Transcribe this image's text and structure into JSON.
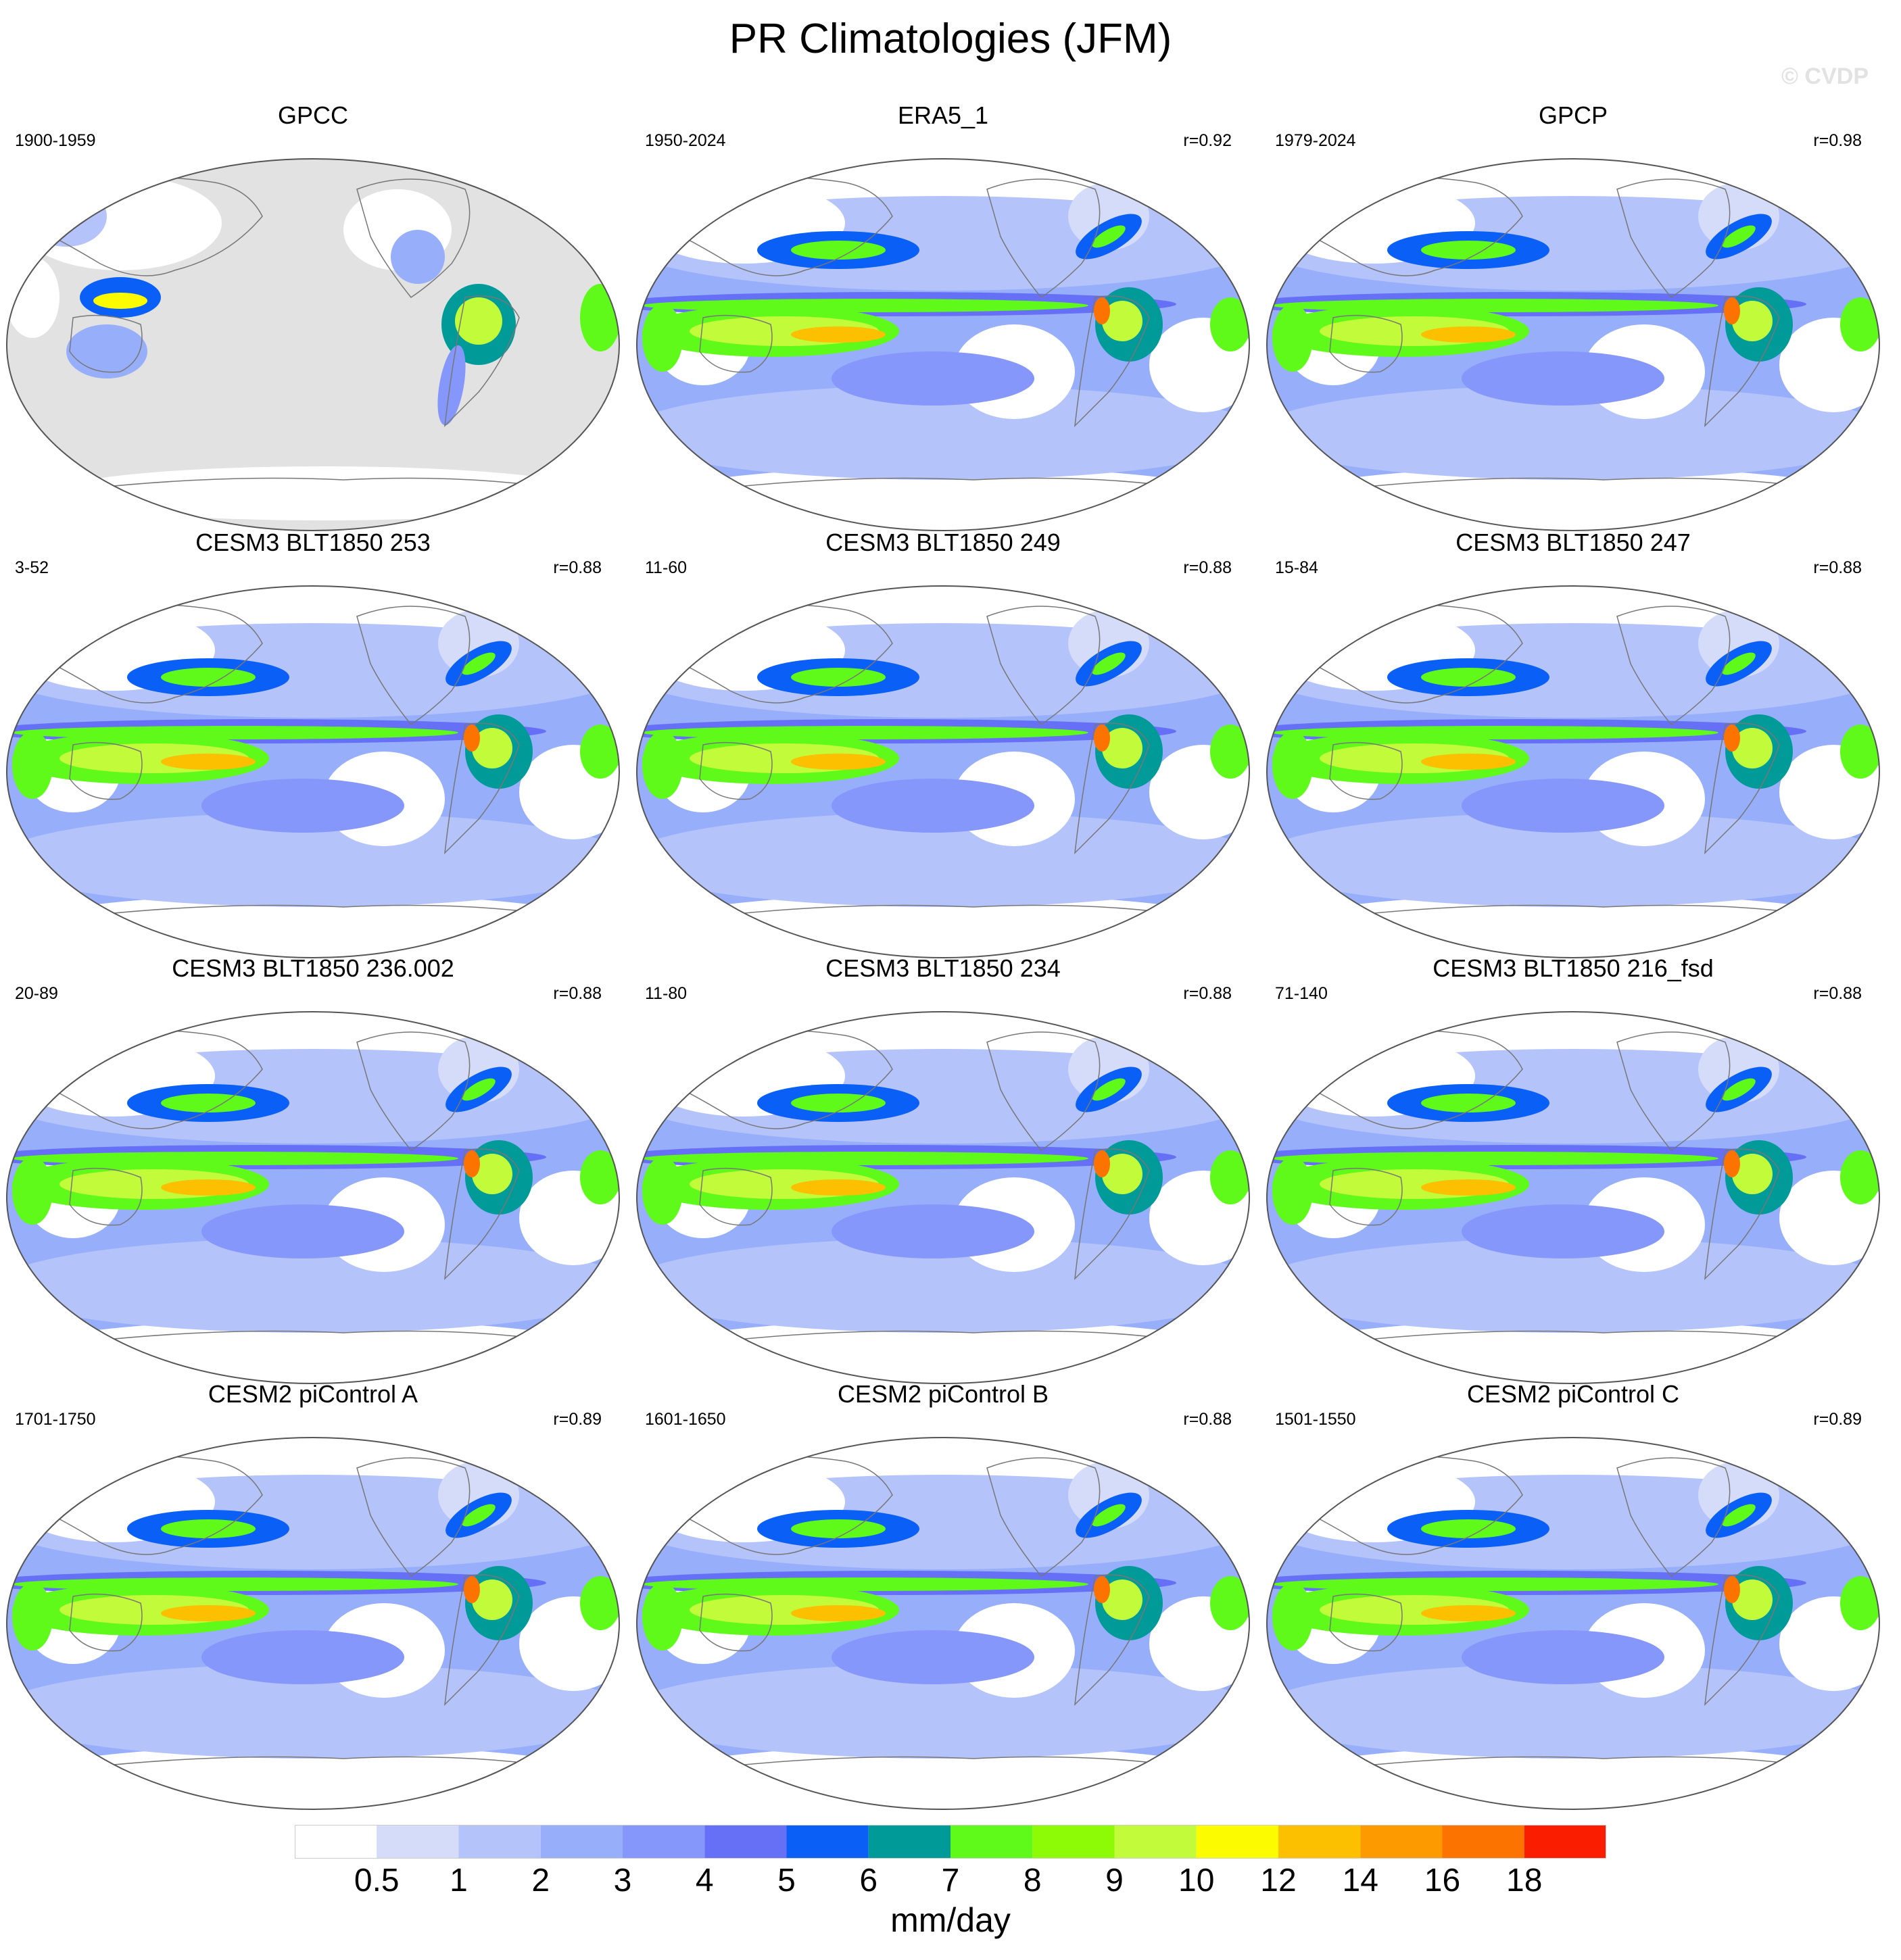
{
  "title": "PR Climatologies (JFM)",
  "watermark": "© CVDP",
  "panels": [
    {
      "title": "GPCC",
      "years": "1900-1959",
      "corr": "",
      "mask": "land"
    },
    {
      "title": "ERA5_1",
      "years": "1950-2024",
      "corr": "r=0.92",
      "mask": "none"
    },
    {
      "title": "GPCP",
      "years": "1979-2024",
      "corr": "r=0.98",
      "mask": "none"
    },
    {
      "title": "CESM3 BLT1850 253",
      "years": "3-52",
      "corr": "r=0.88",
      "mask": "none"
    },
    {
      "title": "CESM3 BLT1850 249",
      "years": "11-60",
      "corr": "r=0.88",
      "mask": "none"
    },
    {
      "title": "CESM3 BLT1850 247",
      "years": "15-84",
      "corr": "r=0.88",
      "mask": "none"
    },
    {
      "title": "CESM3 BLT1850 236.002",
      "years": "20-89",
      "corr": "r=0.88",
      "mask": "none"
    },
    {
      "title": "CESM3 BLT1850 234",
      "years": "11-80",
      "corr": "r=0.88",
      "mask": "none"
    },
    {
      "title": "CESM3 BLT1850 216_fsd",
      "years": "71-140",
      "corr": "r=0.88",
      "mask": "none"
    },
    {
      "title": "CESM2 piControl A",
      "years": "1701-1750",
      "corr": "r=0.89",
      "mask": "none"
    },
    {
      "title": "CESM2 piControl B",
      "years": "1601-1650",
      "corr": "r=0.88",
      "mask": "none"
    },
    {
      "title": "CESM2 piControl C",
      "years": "1501-1550",
      "corr": "r=0.89",
      "mask": "none"
    }
  ],
  "colorbar": {
    "units": "mm/day",
    "ticks": [
      "0.5",
      "1",
      "2",
      "3",
      "4",
      "5",
      "6",
      "7",
      "8",
      "9",
      "10",
      "12",
      "14",
      "16",
      "18"
    ],
    "colors": [
      "#ffffff",
      "#d4dcfa",
      "#b5c3fb",
      "#97aefb",
      "#8597fa",
      "#6670f6",
      "#0a5ff6",
      "#009a99",
      "#5ff91a",
      "#8dfa06",
      "#c1fb3a",
      "#fdfb00",
      "#fcc000",
      "#fc9a00",
      "#fc7300",
      "#fb1d00"
    ]
  },
  "land_mask_color": "#e2e2e2",
  "coastline_color": "#777777"
}
